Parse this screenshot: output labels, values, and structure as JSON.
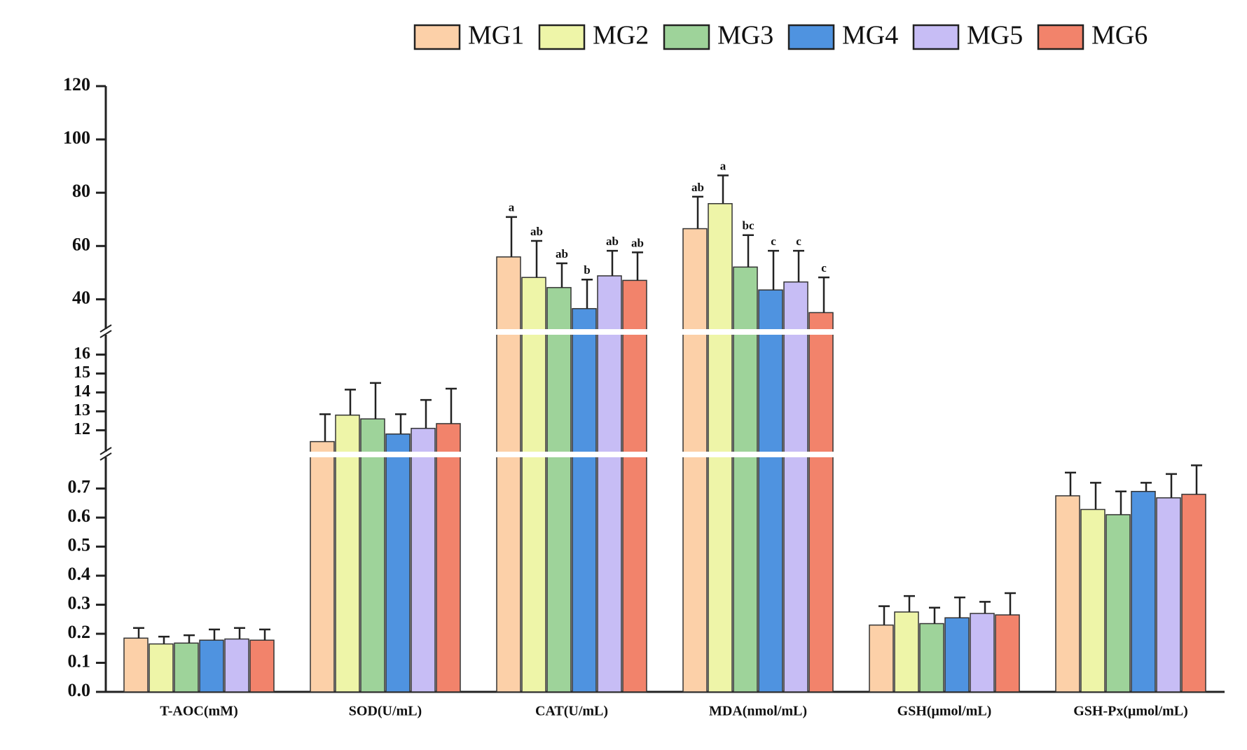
{
  "chart_data": {
    "type": "bar",
    "categories": [
      "T-AOC(mM)",
      "SOD(U/mL)",
      "CAT(U/mL)",
      "MDA(nmol/mL)",
      "GSH(μmol/mL)",
      "GSH-Px(μmol/mL)"
    ],
    "axis_segments": [
      {
        "ylim": [
          0,
          0.81
        ],
        "yticks": [
          {
            "value": 0,
            "label": "0.0"
          },
          0.1,
          0.2,
          0.3,
          0.4,
          0.5,
          0.6,
          0.7
        ]
      },
      {
        "ylim": [
          10.83,
          17.05
        ],
        "yticks": [
          12,
          13,
          14,
          15,
          16
        ]
      },
      {
        "ylim": [
          28.8,
          120
        ],
        "yticks": [
          40,
          60,
          80,
          100,
          120
        ]
      }
    ],
    "series": [
      {
        "name": "MG1",
        "color": "#fcd0a8",
        "values": [
          0.185,
          11.4,
          55.9,
          66.5,
          0.23,
          0.675
        ],
        "errors": [
          0.035,
          1.45,
          15,
          12,
          0.065,
          0.08
        ]
      },
      {
        "name": "MG2",
        "color": "#eef5a8",
        "values": [
          0.165,
          12.8,
          48.2,
          75.9,
          0.275,
          0.628
        ],
        "errors": [
          0.025,
          1.35,
          13.7,
          10.6,
          0.055,
          0.092
        ]
      },
      {
        "name": "MG3",
        "color": "#9ed39a",
        "values": [
          0.168,
          12.6,
          44.4,
          52.1,
          0.235,
          0.61
        ],
        "errors": [
          0.027,
          1.9,
          9.1,
          12,
          0.055,
          0.08
        ]
      },
      {
        "name": "MG4",
        "color": "#4f93e0",
        "values": [
          0.178,
          11.8,
          36.5,
          43.5,
          0.255,
          0.69
        ],
        "errors": [
          0.037,
          1.05,
          10.9,
          14.7,
          0.07,
          0.03
        ]
      },
      {
        "name": "MG5",
        "color": "#c7bdf5",
        "values": [
          0.182,
          12.1,
          48.8,
          46.5,
          0.27,
          0.668
        ],
        "errors": [
          0.038,
          1.5,
          9.4,
          11.7,
          0.04,
          0.082
        ]
      },
      {
        "name": "MG6",
        "color": "#f2836b",
        "values": [
          0.178,
          12.35,
          47.1,
          35,
          0.265,
          0.68
        ],
        "errors": [
          0.037,
          1.85,
          10.5,
          13.2,
          0.075,
          0.1
        ]
      }
    ],
    "significance": [
      null,
      null,
      [
        "a",
        "ab",
        "ab",
        "b",
        "ab",
        "ab"
      ],
      [
        "ab",
        "a",
        "bc",
        "c",
        "c",
        "c"
      ],
      null,
      null
    ]
  }
}
